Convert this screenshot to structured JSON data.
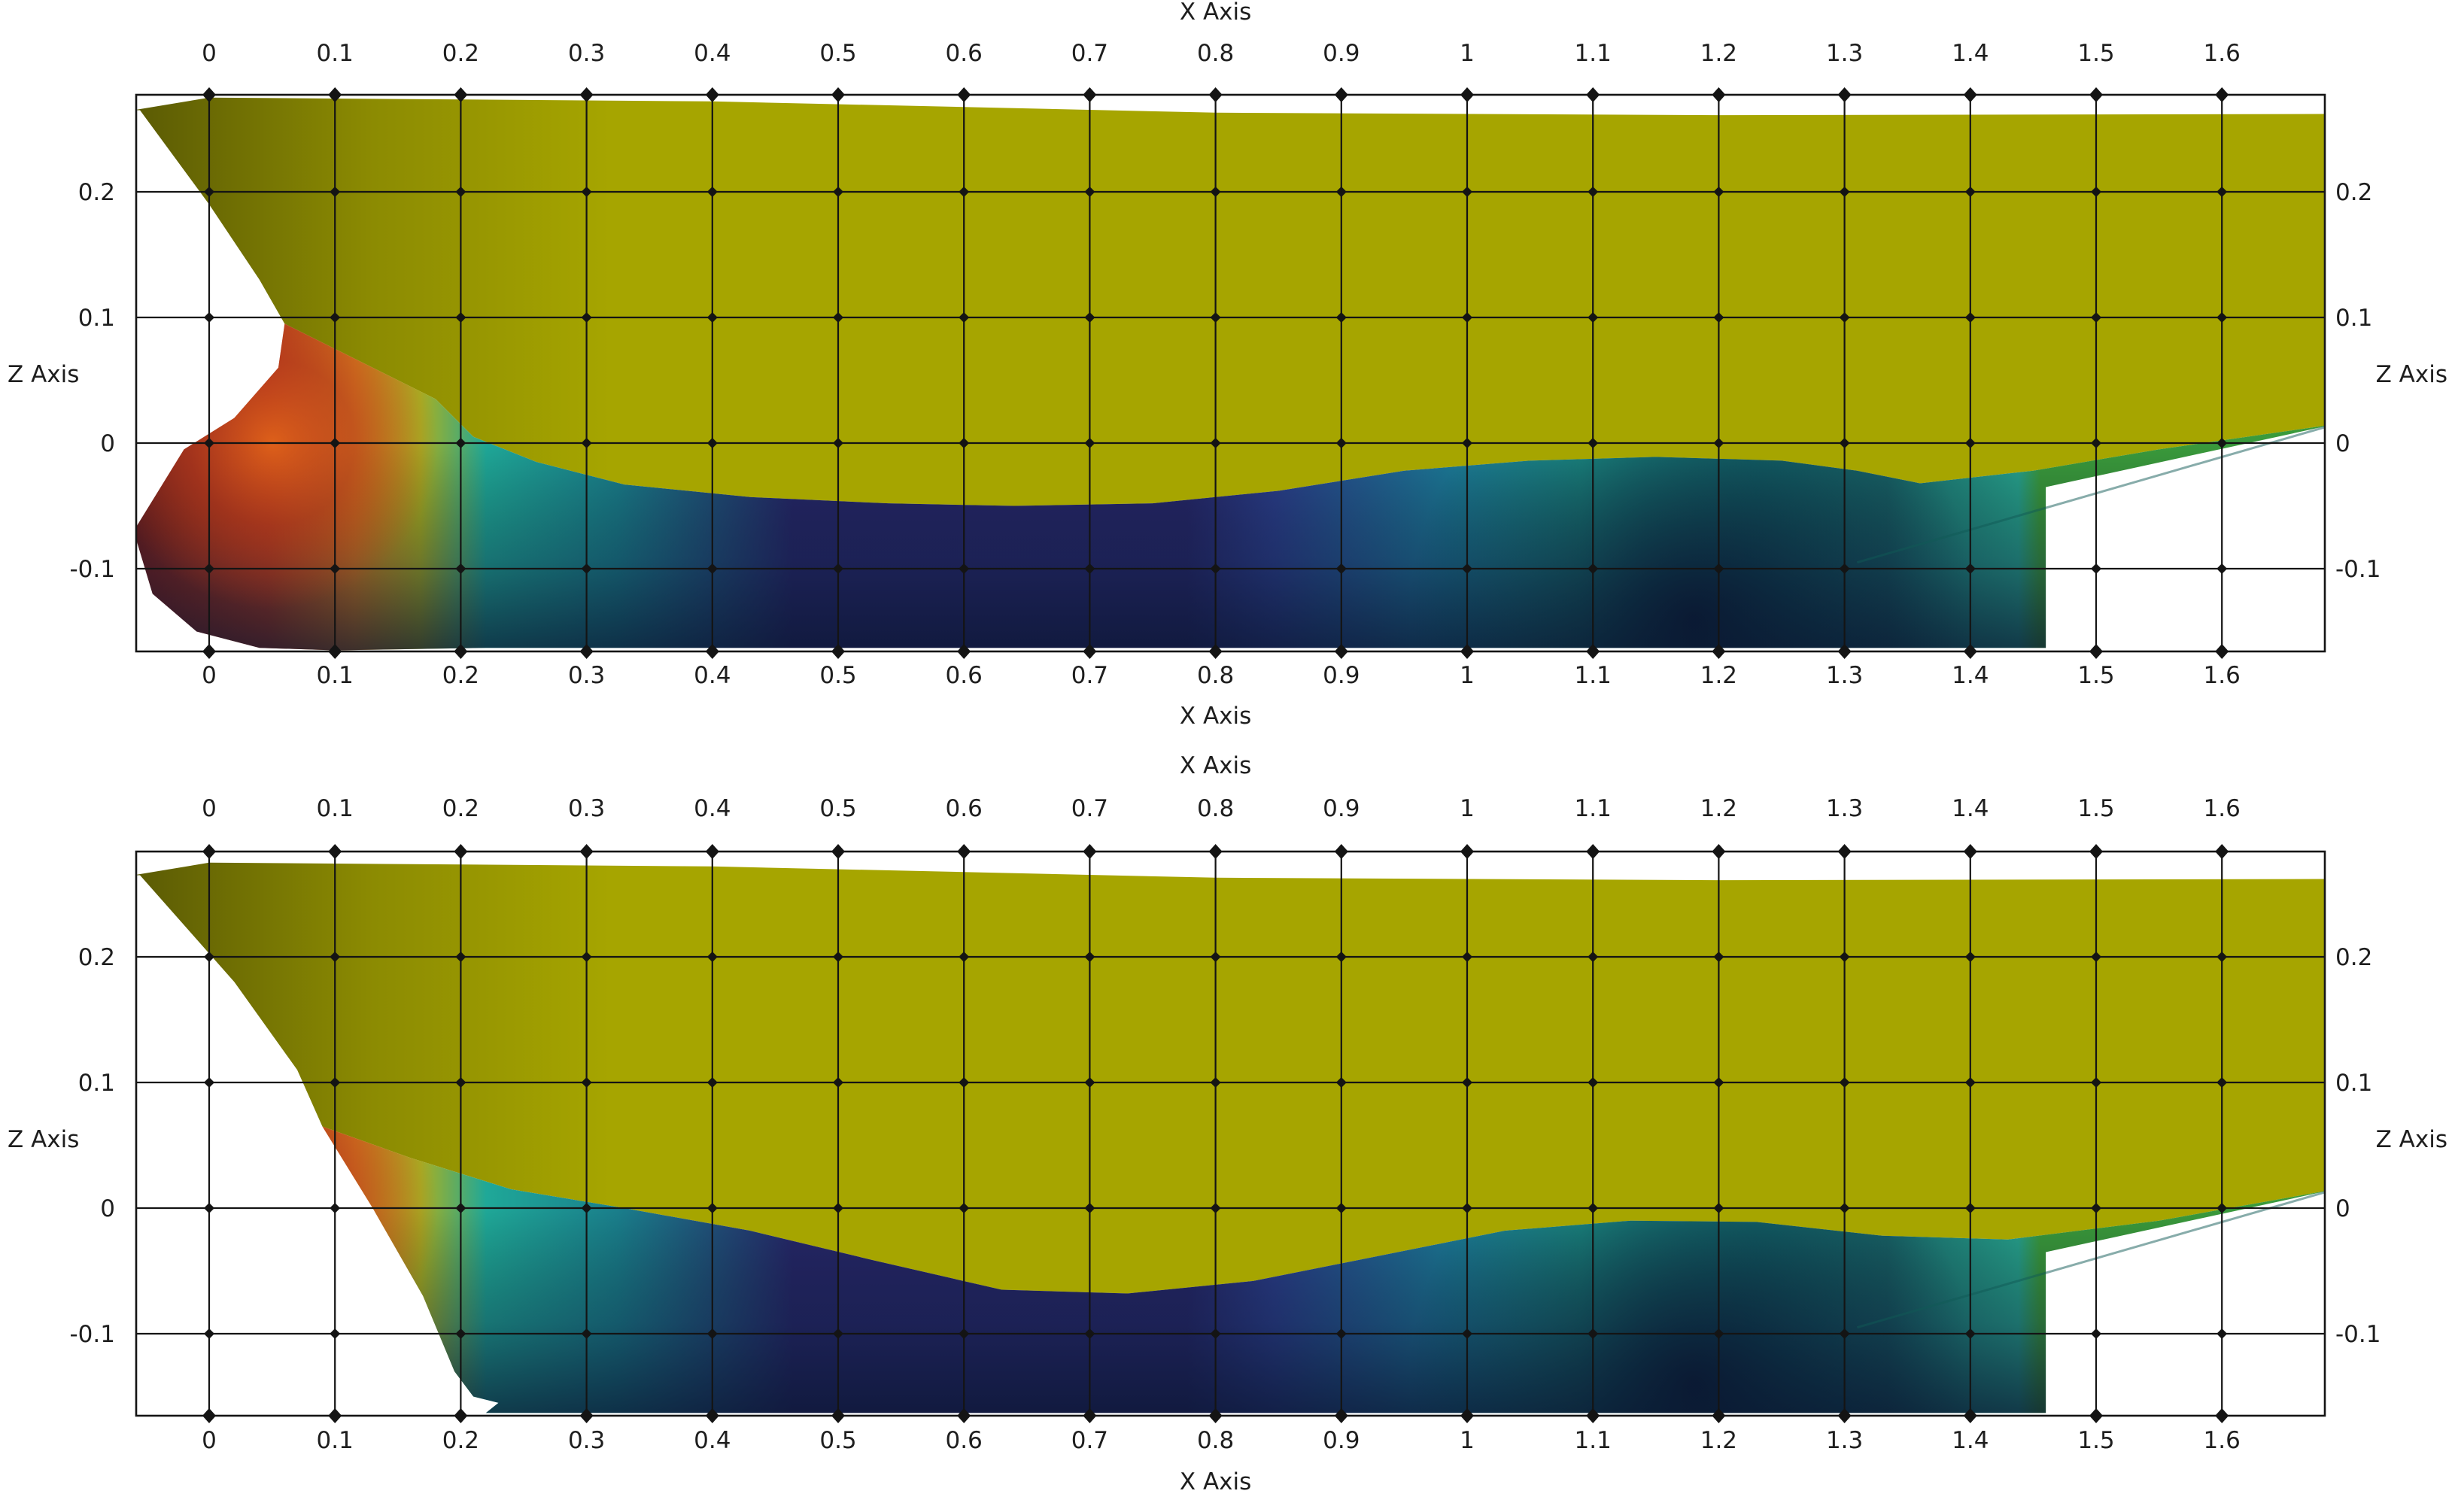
{
  "chart_data": [
    {
      "type": "area",
      "panel": "top",
      "xlabel": "X Axis",
      "ylabel": "Z Axis",
      "xlim": [
        -0.06,
        1.69
      ],
      "ylim": [
        -0.165,
        0.275
      ],
      "grid": true,
      "x_ticks": [
        0,
        0.1,
        0.2,
        0.3,
        0.4,
        0.5,
        0.6,
        0.7,
        0.8,
        0.9,
        1,
        1.1,
        1.2,
        1.3,
        1.4,
        1.5,
        1.6
      ],
      "x_tick_labels": [
        "0",
        "0.1",
        "0.2",
        "0.3",
        "0.4",
        "0.5",
        "0.6",
        "0.7",
        "0.8",
        "0.9",
        "1",
        "1.1",
        "1.2",
        "1.3",
        "1.4",
        "1.5",
        "1.6"
      ],
      "z_ticks": [
        0.2,
        0.1,
        0,
        -0.1
      ],
      "z_tick_labels": [
        "0.2",
        "0.1",
        "0",
        "-0.1"
      ],
      "colors": {
        "hull_above_water": "#a6a500",
        "hull_shadow": "#5b5b04",
        "high_pressure": "#b53a1c",
        "peak": "#6e1e1e",
        "mid": "#1fa898",
        "low_pressure": "#26286a",
        "deep": "#0a1530",
        "aft_green": "#3a9a3c"
      },
      "series": [
        {
          "name": "deck_edge",
          "x": [
            -0.06,
            0.0,
            0.4,
            0.8,
            1.2,
            1.69
          ],
          "z": [
            0.265,
            0.275,
            0.272,
            0.263,
            0.261,
            0.262
          ]
        },
        {
          "name": "bow_profile",
          "x": [
            -0.055,
            0.0,
            0.04,
            0.06,
            0.055,
            0.02,
            -0.02,
            -0.06,
            -0.045,
            -0.01,
            0.04,
            0.1
          ],
          "z": [
            0.265,
            0.19,
            0.13,
            0.095,
            0.06,
            0.02,
            -0.005,
            -0.07,
            -0.12,
            -0.15,
            -0.163,
            -0.165
          ]
        },
        {
          "name": "waterline",
          "x": [
            0.06,
            0.12,
            0.18,
            0.21,
            0.26,
            0.33,
            0.43,
            0.54,
            0.64,
            0.75,
            0.85,
            0.95,
            1.05,
            1.15,
            1.25,
            1.31,
            1.36,
            1.45,
            1.55,
            1.69
          ],
          "z": [
            0.095,
            0.065,
            0.035,
            0.005,
            -0.015,
            -0.033,
            -0.043,
            -0.048,
            -0.05,
            -0.048,
            -0.038,
            -0.022,
            -0.014,
            -0.011,
            -0.014,
            -0.022,
            -0.032,
            -0.022,
            -0.005,
            0.015
          ]
        }
      ]
    },
    {
      "type": "area",
      "panel": "bottom",
      "xlabel": "X Axis",
      "ylabel": "Z Axis",
      "xlim": [
        -0.06,
        1.69
      ],
      "ylim": [
        -0.165,
        0.275
      ],
      "grid": true,
      "x_ticks": [
        0,
        0.1,
        0.2,
        0.3,
        0.4,
        0.5,
        0.6,
        0.7,
        0.8,
        0.9,
        1,
        1.1,
        1.2,
        1.3,
        1.4,
        1.5,
        1.6
      ],
      "x_tick_labels": [
        "0",
        "0.1",
        "0.2",
        "0.3",
        "0.4",
        "0.5",
        "0.6",
        "0.7",
        "0.8",
        "0.9",
        "1",
        "1.1",
        "1.2",
        "1.3",
        "1.4",
        "1.5",
        "1.6"
      ],
      "z_ticks": [
        0.2,
        0.1,
        0,
        -0.1
      ],
      "z_tick_labels": [
        "0.2",
        "0.1",
        "0",
        "-0.1"
      ],
      "colors": {
        "hull_above_water": "#a6a500",
        "hull_shadow": "#5b5b04",
        "high_pressure": "#b53a1c",
        "peak": "#6e1e1e",
        "mid": "#1fa898",
        "low_pressure": "#26286a",
        "deep": "#0a1530",
        "aft_green": "#3a9a3c"
      },
      "series": [
        {
          "name": "deck_edge",
          "x": [
            -0.06,
            0.0,
            0.4,
            0.8,
            1.2,
            1.69
          ],
          "z": [
            0.265,
            0.275,
            0.272,
            0.263,
            0.261,
            0.262
          ]
        },
        {
          "name": "bow_profile",
          "x": [
            -0.055,
            0.02,
            0.07,
            0.09,
            0.13,
            0.17,
            0.195,
            0.21,
            0.23
          ],
          "z": [
            0.265,
            0.18,
            0.11,
            0.065,
            0.0,
            -0.07,
            -0.13,
            -0.15,
            -0.155
          ]
        },
        {
          "name": "waterline",
          "x": [
            0.09,
            0.16,
            0.24,
            0.33,
            0.43,
            0.53,
            0.63,
            0.73,
            0.83,
            0.93,
            1.03,
            1.13,
            1.23,
            1.33,
            1.43,
            1.55,
            1.69
          ],
          "z": [
            0.065,
            0.04,
            0.015,
            0.0,
            -0.018,
            -0.042,
            -0.065,
            -0.068,
            -0.058,
            -0.038,
            -0.018,
            -0.01,
            -0.011,
            -0.022,
            -0.025,
            -0.01,
            0.015
          ]
        }
      ]
    }
  ]
}
